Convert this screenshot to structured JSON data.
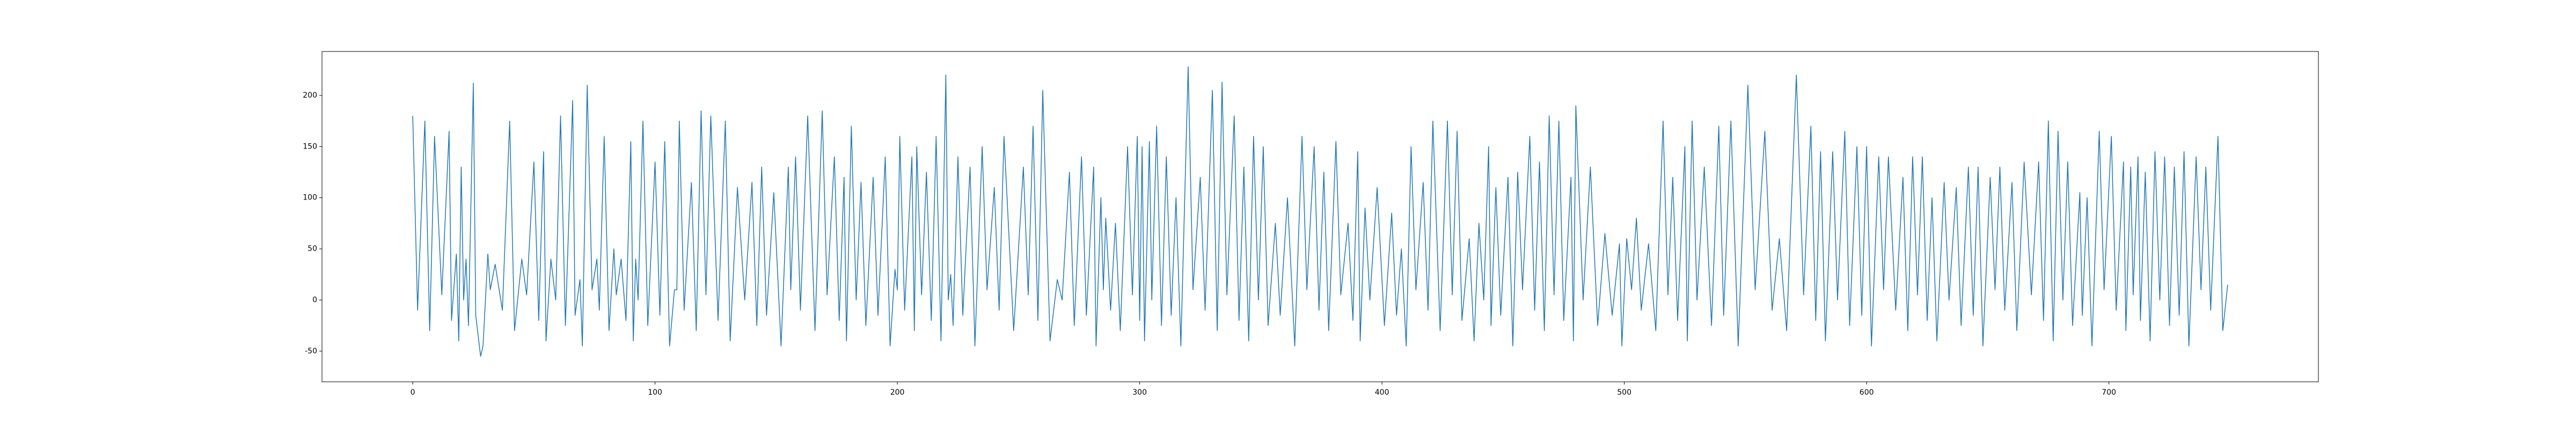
{
  "chart_data": {
    "type": "line",
    "color": "#1f77b4",
    "x": [
      0,
      2,
      5,
      7,
      9,
      12,
      15,
      16,
      18,
      19,
      20,
      21,
      22,
      23,
      25,
      26,
      28,
      29,
      31,
      32,
      34,
      37,
      40,
      42,
      45,
      47,
      50,
      52,
      54,
      55,
      57,
      59,
      61,
      63,
      66,
      67,
      69,
      70,
      72,
      74,
      76,
      77,
      79,
      81,
      83,
      84,
      86,
      88,
      90,
      91,
      92,
      93,
      95,
      97,
      100,
      102,
      104,
      106,
      108,
      109,
      110,
      112,
      115,
      117,
      119,
      121,
      123,
      126,
      129,
      131,
      134,
      137,
      140,
      142,
      144,
      146,
      149,
      152,
      155,
      156,
      158,
      160,
      163,
      166,
      169,
      171,
      174,
      176,
      178,
      179,
      181,
      183,
      185,
      187,
      190,
      192,
      195,
      197,
      199,
      200,
      201,
      203,
      206,
      207,
      208,
      210,
      212,
      214,
      216,
      218,
      220,
      221,
      222,
      223,
      225,
      227,
      230,
      232,
      235,
      237,
      240,
      242,
      244,
      248,
      252,
      254,
      256,
      258,
      260,
      263,
      266,
      268,
      271,
      273,
      276,
      278,
      281,
      282,
      284,
      285,
      286,
      288,
      290,
      292,
      295,
      297,
      299,
      300,
      301,
      302,
      304,
      305,
      307,
      309,
      311,
      313,
      315,
      317,
      320,
      322,
      325,
      327,
      330,
      332,
      334,
      336,
      339,
      341,
      343,
      345,
      347,
      349,
      351,
      353,
      356,
      358,
      361,
      364,
      367,
      369,
      372,
      374,
      376,
      378,
      381,
      383,
      386,
      388,
      390,
      391,
      393,
      395,
      398,
      401,
      404,
      406,
      408,
      410,
      412,
      414,
      417,
      419,
      421,
      424,
      427,
      429,
      431,
      433,
      436,
      438,
      440,
      442,
      444,
      445,
      447,
      449,
      452,
      454,
      456,
      458,
      461,
      463,
      465,
      467,
      469,
      471,
      473,
      475,
      478,
      479,
      480,
      483,
      486,
      489,
      492,
      495,
      498,
      499,
      501,
      503,
      505,
      507,
      510,
      513,
      516,
      518,
      520,
      522,
      525,
      526,
      528,
      530,
      533,
      536,
      539,
      541,
      544,
      547,
      551,
      554,
      558,
      561,
      564,
      567,
      571,
      574,
      577,
      579,
      581,
      583,
      586,
      588,
      591,
      593,
      596,
      598,
      600,
      602,
      605,
      607,
      609,
      612,
      615,
      617,
      619,
      621,
      623,
      625,
      627,
      629,
      632,
      634,
      637,
      639,
      642,
      644,
      646,
      648,
      651,
      653,
      655,
      657,
      660,
      662,
      665,
      668,
      671,
      673,
      675,
      677,
      679,
      681,
      683,
      685,
      688,
      689,
      691,
      693,
      696,
      698,
      701,
      703,
      706,
      707,
      709,
      710,
      712,
      713,
      715,
      717,
      719,
      721,
      723,
      725,
      727,
      729,
      731,
      733,
      736,
      738,
      740,
      742,
      745,
      747,
      749
    ],
    "values": [
      180,
      -10,
      175,
      -30,
      160,
      5,
      165,
      -20,
      45,
      -40,
      130,
      0,
      40,
      -25,
      212,
      -15,
      -55,
      -45,
      45,
      10,
      35,
      -10,
      175,
      -30,
      40,
      5,
      135,
      -20,
      145,
      -40,
      40,
      0,
      180,
      -25,
      195,
      -15,
      20,
      -45,
      210,
      10,
      40,
      -10,
      160,
      -30,
      50,
      5,
      40,
      -20,
      155,
      -40,
      40,
      0,
      175,
      -25,
      135,
      -15,
      155,
      -45,
      10,
      10,
      175,
      -10,
      115,
      -30,
      185,
      5,
      180,
      -20,
      175,
      -40,
      110,
      0,
      115,
      -25,
      130,
      -15,
      105,
      -45,
      130,
      10,
      140,
      -10,
      180,
      -30,
      185,
      5,
      140,
      -20,
      120,
      -40,
      170,
      0,
      115,
      -25,
      120,
      -15,
      140,
      -45,
      30,
      10,
      160,
      -10,
      140,
      -30,
      150,
      5,
      125,
      -20,
      160,
      -40,
      220,
      0,
      25,
      -25,
      140,
      -15,
      130,
      -45,
      150,
      10,
      110,
      -10,
      160,
      -30,
      130,
      5,
      170,
      -20,
      205,
      -40,
      20,
      0,
      125,
      -25,
      140,
      -15,
      130,
      -45,
      100,
      10,
      80,
      -10,
      75,
      -30,
      150,
      5,
      160,
      -20,
      150,
      -40,
      155,
      0,
      170,
      -25,
      140,
      -15,
      100,
      -45,
      228,
      10,
      120,
      -10,
      205,
      -30,
      213,
      5,
      180,
      -20,
      130,
      -40,
      160,
      0,
      150,
      -25,
      75,
      -15,
      100,
      -45,
      160,
      10,
      150,
      -10,
      125,
      -30,
      155,
      5,
      75,
      -20,
      145,
      -40,
      90,
      0,
      110,
      -25,
      85,
      -15,
      50,
      -45,
      150,
      10,
      115,
      -10,
      175,
      -30,
      175,
      5,
      165,
      -20,
      60,
      -40,
      75,
      0,
      150,
      -25,
      110,
      -15,
      120,
      -45,
      125,
      10,
      160,
      -10,
      135,
      -30,
      180,
      5,
      175,
      -20,
      120,
      -40,
      190,
      0,
      130,
      -25,
      65,
      -15,
      55,
      -45,
      60,
      10,
      80,
      -10,
      55,
      -30,
      175,
      5,
      120,
      -20,
      150,
      -40,
      175,
      0,
      130,
      -25,
      170,
      -15,
      175,
      -45,
      210,
      10,
      165,
      -10,
      60,
      -30,
      220,
      5,
      170,
      -20,
      145,
      -40,
      145,
      0,
      165,
      -25,
      150,
      -15,
      150,
      -45,
      140,
      10,
      140,
      -10,
      120,
      -30,
      140,
      5,
      140,
      -20,
      100,
      -40,
      115,
      0,
      110,
      -25,
      130,
      -15,
      130,
      -45,
      120,
      10,
      130,
      -10,
      115,
      -30,
      135,
      5,
      135,
      -20,
      175,
      -40,
      165,
      0,
      135,
      -25,
      105,
      -15,
      100,
      -45,
      165,
      10,
      160,
      -10,
      135,
      -30,
      130,
      5,
      140,
      -20,
      125,
      -40,
      145,
      0,
      140,
      -25,
      130,
      -15,
      145,
      -45,
      140,
      10,
      130,
      -10,
      160,
      -30,
      15
    ],
    "xlim": [
      -37.45,
      786.45
    ],
    "ylim": [
      -80,
      243
    ],
    "xticks": [
      0,
      100,
      200,
      300,
      400,
      500,
      600,
      700
    ],
    "yticks": [
      -50,
      0,
      50,
      100,
      150,
      200
    ]
  }
}
